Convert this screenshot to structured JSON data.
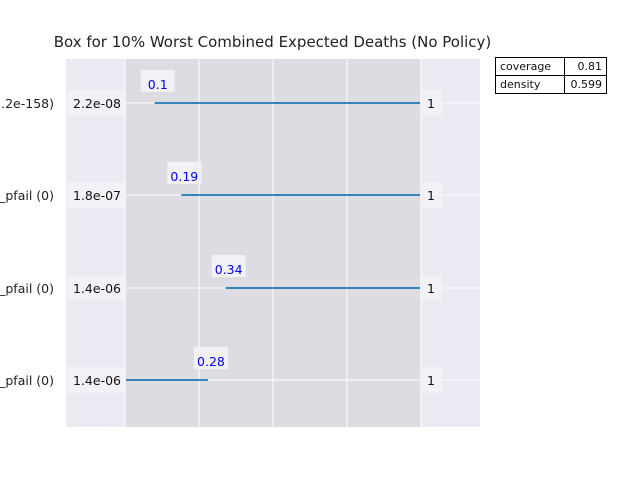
{
  "chart_data": {
    "type": "box-limits",
    "title": "Box for 10% Worst Combined Expected Deaths (No Policy)",
    "rows": [
      {
        "label": ".2e-158)",
        "box_min": 0.1,
        "box_max": 1,
        "min_label": "2.2e-08",
        "max_label": "1",
        "qp_label": "0.1"
      },
      {
        "label": "_pfail (0)",
        "box_min": 0.19,
        "box_max": 1,
        "min_label": "1.8e-07",
        "max_label": "1",
        "qp_label": "0.19"
      },
      {
        "label": "_pfail (0)",
        "box_min": 0.34,
        "box_max": 1,
        "min_label": "1.4e-06",
        "max_label": "1",
        "qp_label": "0.34"
      },
      {
        "label": "_pfail (0)",
        "box_min": 0,
        "box_max": 0.28,
        "min_label": "1.4e-06",
        "max_label": "1",
        "qp_label": "0.28"
      }
    ],
    "stats": [
      {
        "key": "coverage",
        "value": "0.81"
      },
      {
        "key": "density",
        "value": "0.599"
      }
    ],
    "xlim": [
      -0.2,
      1.2
    ],
    "grid": true,
    "colors": {
      "line": "#1f77b4",
      "qp_text": "#0000ee",
      "axes_bg": "#eaeaf2",
      "box_bg": "#dcdce2",
      "label_bg": "#f2f2f6"
    }
  }
}
